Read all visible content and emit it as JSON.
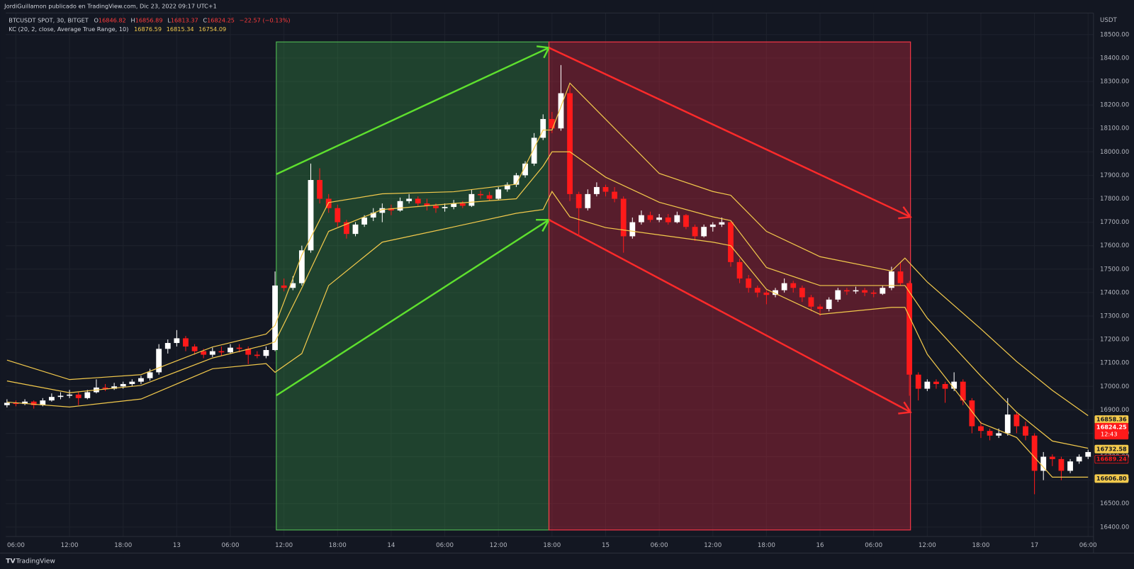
{
  "header": {
    "attribution": "JordiGuillamon publicado en TradingView.com, Dic 23, 2022 09:17 UTC+1",
    "legend": {
      "symbol": "BTCUSDT SPOT, 30, BITGET",
      "fields": [
        {
          "label": "O",
          "value": "16846.82"
        },
        {
          "label": "H",
          "value": "16856.89"
        },
        {
          "label": "L",
          "value": "16813.37"
        },
        {
          "label": "C",
          "value": "16824.25"
        }
      ],
      "change": "−22.57 (−0.13%)"
    },
    "indicator": {
      "name": "KC (20, 2, close, Average True Range, 10)",
      "values": [
        "16876.59",
        "16815.34",
        "16754.09"
      ]
    },
    "currency": "USDT",
    "footer": "TradingView"
  },
  "chart_data": {
    "type": "candlestick",
    "up_color": "#ffffff",
    "down_color": "#ff1a1a",
    "grid": true,
    "xlim": [
      4.87,
      126.6
    ],
    "ylim": [
      16360,
      18592
    ],
    "xticks": [
      {
        "value": 6,
        "label": "06:00"
      },
      {
        "value": 12,
        "label": "12:00"
      },
      {
        "value": 18,
        "label": "18:00"
      },
      {
        "value": 24,
        "label": "13"
      },
      {
        "value": 30,
        "label": "06:00"
      },
      {
        "value": 36,
        "label": "12:00"
      },
      {
        "value": 42,
        "label": "18:00"
      },
      {
        "value": 48,
        "label": "14"
      },
      {
        "value": 54,
        "label": "06:00"
      },
      {
        "value": 60,
        "label": "12:00"
      },
      {
        "value": 66,
        "label": "18:00"
      },
      {
        "value": 72,
        "label": "15"
      },
      {
        "value": 78,
        "label": "06:00"
      },
      {
        "value": 84,
        "label": "12:00"
      },
      {
        "value": 90,
        "label": "18:00"
      },
      {
        "value": 96,
        "label": "16"
      },
      {
        "value": 102,
        "label": "06:00"
      },
      {
        "value": 108,
        "label": "12:00"
      },
      {
        "value": 114,
        "label": "18:00"
      },
      {
        "value": 120,
        "label": "17"
      },
      {
        "value": 126,
        "label": "06:00"
      }
    ],
    "yticks": [
      {
        "value": 16400,
        "label": "16400.00"
      },
      {
        "value": 16500,
        "label": "16500.00"
      },
      {
        "value": 16600,
        "label": "16600.00"
      },
      {
        "value": 16700,
        "label": "16700.00"
      },
      {
        "value": 16800,
        "label": "16800.00"
      },
      {
        "value": 16900,
        "label": "16900.00"
      },
      {
        "value": 17000,
        "label": "17000.00"
      },
      {
        "value": 17100,
        "label": "17100.00"
      },
      {
        "value": 17200,
        "label": "17200.00"
      },
      {
        "value": 17300,
        "label": "17300.00"
      },
      {
        "value": 17400,
        "label": "17400.00"
      },
      {
        "value": 17500,
        "label": "17500.00"
      },
      {
        "value": 17600,
        "label": "17600.00"
      },
      {
        "value": 17700,
        "label": "17700.00"
      },
      {
        "value": 17800,
        "label": "17800.00"
      },
      {
        "value": 17900,
        "label": "17900.00"
      },
      {
        "value": 18000,
        "label": "18000.00"
      },
      {
        "value": 18100,
        "label": "18100.00"
      },
      {
        "value": 18200,
        "label": "18200.00"
      },
      {
        "value": 18300,
        "label": "18300.00"
      },
      {
        "value": 18400,
        "label": "18400.00"
      },
      {
        "value": 18500,
        "label": "18500.00"
      }
    ],
    "x": [
      5,
      6,
      7,
      8,
      9,
      10,
      11,
      12,
      13,
      14,
      15,
      16,
      17,
      18,
      19,
      20,
      21,
      22,
      23,
      24,
      25,
      26,
      27,
      28,
      29,
      30,
      31,
      32,
      33,
      34,
      35,
      36,
      37,
      38,
      39,
      40,
      41,
      42,
      43,
      44,
      45,
      46,
      47,
      48,
      49,
      50,
      51,
      52,
      53,
      54,
      55,
      56,
      57,
      58,
      59,
      60,
      61,
      62,
      63,
      64,
      65,
      66,
      67,
      68,
      69,
      70,
      71,
      72,
      73,
      74,
      75,
      76,
      77,
      78,
      79,
      80,
      81,
      82,
      83,
      84,
      85,
      86,
      87,
      88,
      89,
      90,
      91,
      92,
      93,
      94,
      95,
      96,
      97,
      98,
      99,
      100,
      101,
      102,
      103,
      104,
      105,
      106,
      107,
      108,
      109,
      110,
      111,
      112,
      113,
      114,
      115,
      116,
      117,
      118,
      119,
      120,
      121,
      122,
      123,
      124,
      125,
      126
    ],
    "ohlc": [
      [
        16920,
        16945,
        16910,
        16930
      ],
      [
        16930,
        16940,
        16915,
        16925
      ],
      [
        16925,
        16945,
        16920,
        16935
      ],
      [
        16935,
        16940,
        16905,
        16920
      ],
      [
        16920,
        16950,
        16915,
        16940
      ],
      [
        16940,
        16970,
        16935,
        16955
      ],
      [
        16955,
        16975,
        16945,
        16960
      ],
      [
        16960,
        16985,
        16950,
        16965
      ],
      [
        16965,
        16975,
        16920,
        16950
      ],
      [
        16950,
        16985,
        16945,
        16975
      ],
      [
        16975,
        17030,
        16970,
        16995
      ],
      [
        16995,
        17010,
        16980,
        16990
      ],
      [
        16990,
        17015,
        16985,
        17000
      ],
      [
        17000,
        17020,
        16990,
        17010
      ],
      [
        17010,
        17030,
        17000,
        17020
      ],
      [
        17020,
        17045,
        17010,
        17035
      ],
      [
        17035,
        17075,
        17025,
        17060
      ],
      [
        17060,
        17180,
        17050,
        17160
      ],
      [
        17160,
        17200,
        17140,
        17185
      ],
      [
        17185,
        17240,
        17170,
        17205
      ],
      [
        17205,
        17215,
        17150,
        17170
      ],
      [
        17170,
        17180,
        17135,
        17150
      ],
      [
        17150,
        17160,
        17120,
        17135
      ],
      [
        17135,
        17165,
        17125,
        17150
      ],
      [
        17150,
        17170,
        17130,
        17145
      ],
      [
        17145,
        17180,
        17140,
        17165
      ],
      [
        17165,
        17180,
        17145,
        17160
      ],
      [
        17160,
        17170,
        17095,
        17135
      ],
      [
        17135,
        17150,
        17120,
        17130
      ],
      [
        17130,
        17170,
        17120,
        17155
      ],
      [
        17155,
        17490,
        17150,
        17430
      ],
      [
        17430,
        17460,
        17405,
        17420
      ],
      [
        17420,
        17470,
        17410,
        17440
      ],
      [
        17440,
        17600,
        17430,
        17580
      ],
      [
        17580,
        17950,
        17570,
        17880
      ],
      [
        17880,
        17930,
        17780,
        17800
      ],
      [
        17800,
        17820,
        17740,
        17760
      ],
      [
        17760,
        17775,
        17680,
        17700
      ],
      [
        17700,
        17710,
        17630,
        17650
      ],
      [
        17650,
        17700,
        17640,
        17690
      ],
      [
        17690,
        17730,
        17680,
        17720
      ],
      [
        17720,
        17760,
        17705,
        17740
      ],
      [
        17740,
        17780,
        17700,
        17760
      ],
      [
        17760,
        17775,
        17730,
        17750
      ],
      [
        17750,
        17805,
        17745,
        17790
      ],
      [
        17790,
        17820,
        17780,
        17800
      ],
      [
        17800,
        17810,
        17770,
        17780
      ],
      [
        17780,
        17800,
        17750,
        17770
      ],
      [
        17770,
        17780,
        17740,
        17760
      ],
      [
        17760,
        17780,
        17745,
        17765
      ],
      [
        17765,
        17795,
        17755,
        17780
      ],
      [
        17780,
        17790,
        17760,
        17770
      ],
      [
        17770,
        17840,
        17765,
        17820
      ],
      [
        17820,
        17835,
        17800,
        17815
      ],
      [
        17815,
        17830,
        17790,
        17800
      ],
      [
        17800,
        17850,
        17795,
        17840
      ],
      [
        17840,
        17870,
        17830,
        17860
      ],
      [
        17860,
        17910,
        17850,
        17900
      ],
      [
        17900,
        17960,
        17890,
        17950
      ],
      [
        17950,
        18080,
        17940,
        18060
      ],
      [
        18060,
        18160,
        18050,
        18140
      ],
      [
        18140,
        18170,
        18080,
        18100
      ],
      [
        18100,
        18370,
        18090,
        18250
      ],
      [
        18250,
        18280,
        17790,
        17820
      ],
      [
        17820,
        17830,
        17640,
        17760
      ],
      [
        17760,
        17840,
        17750,
        17820
      ],
      [
        17820,
        17870,
        17810,
        17850
      ],
      [
        17850,
        17860,
        17810,
        17830
      ],
      [
        17830,
        17850,
        17785,
        17800
      ],
      [
        17800,
        17810,
        17570,
        17640
      ],
      [
        17640,
        17720,
        17630,
        17700
      ],
      [
        17700,
        17750,
        17690,
        17730
      ],
      [
        17730,
        17745,
        17700,
        17710
      ],
      [
        17710,
        17735,
        17700,
        17720
      ],
      [
        17720,
        17735,
        17690,
        17700
      ],
      [
        17700,
        17745,
        17695,
        17730
      ],
      [
        17730,
        17735,
        17670,
        17680
      ],
      [
        17680,
        17690,
        17620,
        17640
      ],
      [
        17640,
        17690,
        17635,
        17680
      ],
      [
        17680,
        17700,
        17660,
        17690
      ],
      [
        17690,
        17720,
        17680,
        17700
      ],
      [
        17700,
        17705,
        17510,
        17530
      ],
      [
        17530,
        17545,
        17440,
        17460
      ],
      [
        17460,
        17475,
        17400,
        17420
      ],
      [
        17420,
        17430,
        17380,
        17400
      ],
      [
        17400,
        17410,
        17350,
        17390
      ],
      [
        17390,
        17420,
        17380,
        17410
      ],
      [
        17410,
        17460,
        17400,
        17440
      ],
      [
        17440,
        17450,
        17400,
        17420
      ],
      [
        17420,
        17430,
        17360,
        17380
      ],
      [
        17380,
        17390,
        17320,
        17340
      ],
      [
        17340,
        17350,
        17300,
        17330
      ],
      [
        17330,
        17380,
        17320,
        17370
      ],
      [
        17370,
        17420,
        17360,
        17410
      ],
      [
        17410,
        17420,
        17390,
        17405
      ],
      [
        17405,
        17425,
        17395,
        17410
      ],
      [
        17410,
        17420,
        17385,
        17400
      ],
      [
        17400,
        17410,
        17380,
        17395
      ],
      [
        17395,
        17430,
        17390,
        17420
      ],
      [
        17420,
        17510,
        17410,
        17490
      ],
      [
        17490,
        17530,
        17430,
        17440
      ],
      [
        17440,
        17450,
        16960,
        17050
      ],
      [
        17050,
        17060,
        16940,
        16990
      ],
      [
        16990,
        17030,
        16980,
        17020
      ],
      [
        17020,
        17030,
        16990,
        17010
      ],
      [
        17010,
        17020,
        16930,
        16990
      ],
      [
        16990,
        17060,
        16980,
        17020
      ],
      [
        17020,
        17030,
        16920,
        16940
      ],
      [
        16940,
        16950,
        16800,
        16830
      ],
      [
        16830,
        16850,
        16780,
        16810
      ],
      [
        16810,
        16820,
        16770,
        16790
      ],
      [
        16790,
        16820,
        16780,
        16800
      ],
      [
        16800,
        16950,
        16790,
        16880
      ],
      [
        16880,
        16890,
        16800,
        16830
      ],
      [
        16830,
        16850,
        16770,
        16790
      ],
      [
        16790,
        16800,
        16540,
        16640
      ],
      [
        16640,
        16720,
        16600,
        16700
      ],
      [
        16700,
        16710,
        16660,
        16690
      ],
      [
        16690,
        16700,
        16600,
        16640
      ],
      [
        16640,
        16690,
        16630,
        16680
      ],
      [
        16680,
        16710,
        16670,
        16700
      ],
      [
        16700,
        16730,
        16690,
        16720
      ]
    ],
    "bands": {
      "color": "#f2c94c",
      "x": [
        5,
        12,
        20,
        28,
        34,
        35,
        38,
        41,
        47,
        55,
        62,
        65,
        66,
        68,
        72,
        78,
        84,
        86,
        90,
        96,
        104,
        105.5,
        108,
        114,
        118,
        122,
        126
      ],
      "upper": [
        17112,
        17029,
        17050,
        17168,
        17223,
        17260,
        17560,
        17784,
        17821,
        17830,
        17862,
        18093,
        18093,
        18293,
        18139,
        17908,
        17831,
        17815,
        17661,
        17553,
        17492,
        17547,
        17445,
        17245,
        17106,
        16983,
        16875
      ],
      "basis": [
        17023,
        16973,
        17004,
        17121,
        17177,
        17190,
        17420,
        17661,
        17754,
        17780,
        17800,
        17939,
        18000,
        18000,
        17892,
        17785,
        17723,
        17707,
        17507,
        17430,
        17430,
        17430,
        17291,
        17044,
        16890,
        16767,
        16736
      ],
      "lower": [
        16933,
        16912,
        16946,
        17075,
        17097,
        17060,
        17140,
        17430,
        17615,
        17680,
        17738,
        17754,
        17831,
        17723,
        17677,
        17646,
        17615,
        17600,
        17414,
        17307,
        17337,
        17337,
        17137,
        16844,
        16782,
        16613,
        16613
      ]
    },
    "price_tags": [
      {
        "value": 16689.24,
        "color": "#131722",
        "border": "#ff1a1a",
        "text_color": "#ff1a1a"
      },
      {
        "value": 16858.36,
        "color": "#f2c94c",
        "border": "#f2c94c",
        "text_color": "#131722"
      },
      {
        "value": 16732.58,
        "color": "#f2c94c",
        "border": "#f2c94c",
        "text_color": "#131722"
      },
      {
        "value": 16606.8,
        "label": "16606.80",
        "color": "#f2c94c",
        "border": "#f2c94c",
        "text_color": "#131722"
      },
      {
        "value": 16824.25,
        "color": "#ff1a1a",
        "border": "#ff1a1a",
        "text_color": "#ffffff",
        "countdown": "12:43"
      }
    ]
  }
}
